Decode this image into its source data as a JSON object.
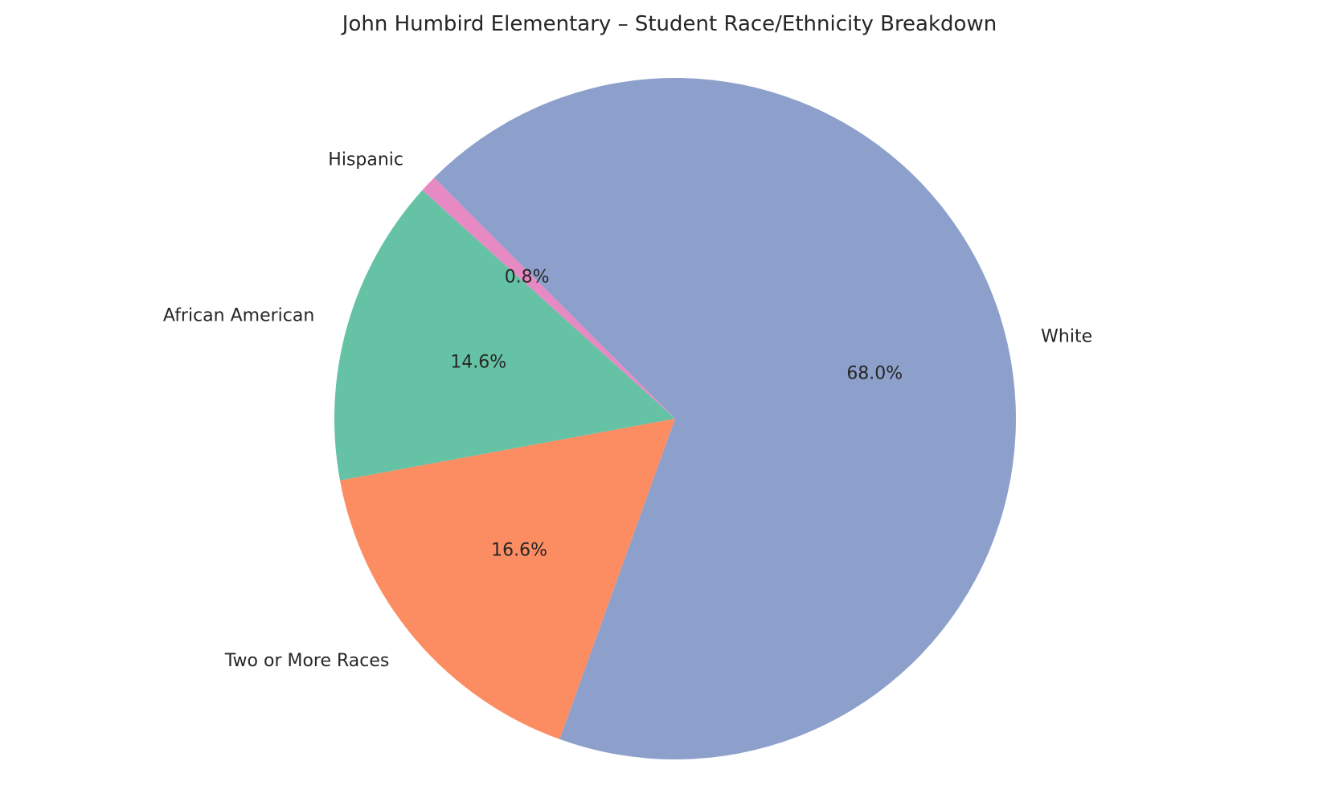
{
  "chart_data": {
    "type": "pie",
    "title": "John Humbird Elementary – Student Race/Ethnicity Breakdown",
    "start_angle_deg": 135,
    "direction": "counterclockwise",
    "slices": [
      {
        "label": "Hispanic",
        "value": 0.8,
        "pct_label": "0.8%",
        "color": "#e78ac3"
      },
      {
        "label": "African American",
        "value": 14.6,
        "pct_label": "14.6%",
        "color": "#66c2a5"
      },
      {
        "label": "Two or More Races",
        "value": 16.6,
        "pct_label": "16.6%",
        "color": "#fc8d62"
      },
      {
        "label": "White",
        "value": 68.0,
        "pct_label": "68.0%",
        "color": "#8da0cb"
      }
    ]
  }
}
